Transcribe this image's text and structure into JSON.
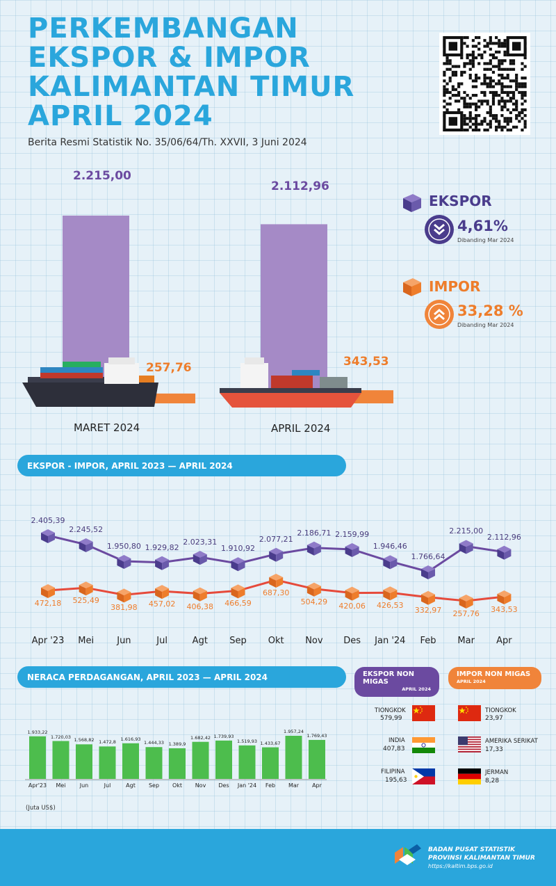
{
  "header": {
    "title_lines": [
      "PERKEMBANGAN",
      "EKSPOR & IMPOR",
      "KALIMANTAN TIMUR",
      "APRIL 2024"
    ],
    "subtitle": "Berita Resmi Statistik No. 35/06/64/Th. XXVII, 3 Juni 2024"
  },
  "comparison": {
    "periods": [
      "MARET 2024",
      "APRIL 2024"
    ],
    "ekspor_labels": [
      "2.215,00",
      "2.112,96"
    ],
    "impor_labels": [
      "257,76",
      "343,53"
    ],
    "ekspor_values": [
      2215.0,
      2112.96
    ],
    "impor_values": [
      257.76,
      343.53
    ],
    "colors": {
      "ekspor": "#a58ac6",
      "impor": "#f0843a"
    }
  },
  "changes": {
    "ekspor": {
      "title": "EKSPOR",
      "pct": "4,61%",
      "note": "Dibanding Mar 2024",
      "direction": "down",
      "color": "#4a3c8c"
    },
    "impor": {
      "title": "IMPOR",
      "pct": "33,28 %",
      "note": "Dibanding Mar 2024",
      "direction": "up",
      "color": "#f0843a"
    }
  },
  "trend_section": {
    "title": "EKSPOR - IMPOR, APRIL 2023 — APRIL 2024",
    "months": [
      "Apr '23",
      "Mei",
      "Jun",
      "Jul",
      "Agt",
      "Sep",
      "Okt",
      "Nov",
      "Des",
      "Jan '24",
      "Feb",
      "Mar",
      "Apr"
    ],
    "ekspor_labels": [
      "2.405,39",
      "2.245,52",
      "1.950,80",
      "1.929,82",
      "2.023,31",
      "1.910,92",
      "2.077,21",
      "2.186,71",
      "2.159,99",
      "1.946,46",
      "1.766,64",
      "2.215,00",
      "2.112,96"
    ],
    "impor_labels": [
      "472,18",
      "525,49",
      "381,98",
      "457,02",
      "406,38",
      "466,59",
      "687,30",
      "504,29",
      "420,06",
      "426,53",
      "332,97",
      "257,76",
      "343,53"
    ]
  },
  "balance_section": {
    "title": "NERACA PERDAGANGAN, APRIL 2023 — APRIL 2024",
    "months": [
      "Apr'23",
      "Mei",
      "Jun",
      "Jul",
      "Agt",
      "Sep",
      "Okt",
      "Nov",
      "Des",
      "Jan '24",
      "Feb",
      "Mar",
      "Apr"
    ],
    "labels": [
      "1.933,22",
      "1.720,03",
      "1.568,82",
      "1.472,8",
      "1.616,93",
      "1.444,33",
      "1.389,9",
      "1.682,42",
      "1.739,93",
      "1.519,93",
      "1.433,67",
      "1.957,24",
      "1.769,43"
    ],
    "unit": "(Juta US$)",
    "bar_color": "#4dbd4d"
  },
  "chart_data": [
    {
      "type": "bar",
      "categories": [
        "MARET 2024",
        "APRIL 2024"
      ],
      "series": [
        {
          "name": "EKSPOR",
          "values": [
            2215.0,
            2112.96
          ]
        },
        {
          "name": "IMPOR",
          "values": [
            257.76,
            343.53
          ]
        }
      ]
    },
    {
      "type": "line",
      "title": "EKSPOR - IMPOR, APRIL 2023 — APRIL 2024",
      "categories": [
        "Apr '23",
        "Mei",
        "Jun",
        "Jul",
        "Agt",
        "Sep",
        "Okt",
        "Nov",
        "Des",
        "Jan '24",
        "Feb",
        "Mar",
        "Apr"
      ],
      "series": [
        {
          "name": "EKSPOR",
          "values": [
            2405.39,
            2245.52,
            1950.8,
            1929.82,
            2023.31,
            1910.92,
            2077.21,
            2186.71,
            2159.99,
            1946.46,
            1766.64,
            2215.0,
            2112.96
          ]
        },
        {
          "name": "IMPOR",
          "values": [
            472.18,
            525.49,
            381.98,
            457.02,
            406.38,
            466.59,
            687.3,
            504.29,
            420.06,
            426.53,
            332.97,
            257.76,
            343.53
          ]
        }
      ]
    },
    {
      "type": "bar",
      "title": "NERACA PERDAGANGAN, APRIL 2023 — APRIL 2024",
      "categories": [
        "Apr'23",
        "Mei",
        "Jun",
        "Jul",
        "Agt",
        "Sep",
        "Okt",
        "Nov",
        "Des",
        "Jan '24",
        "Feb",
        "Mar",
        "Apr"
      ],
      "values": [
        1933.22,
        1720.03,
        1568.82,
        1472.8,
        1616.93,
        1444.33,
        1389.9,
        1682.42,
        1739.93,
        1519.93,
        1433.67,
        1957.24,
        1769.43
      ]
    }
  ],
  "non_migas": {
    "ekspor_title": "EKSPOR NON MIGAS",
    "impor_title": "IMPOR NON MIGAS",
    "period": "APRIL 2024",
    "ekspor": [
      {
        "country": "TIONGKOK",
        "value": "579,99",
        "flag": "china-flag"
      },
      {
        "country": "INDIA",
        "value": "407,83",
        "flag": "india-flag"
      },
      {
        "country": "FILIPINA",
        "value": "195,63",
        "flag": "philippines-flag"
      }
    ],
    "impor": [
      {
        "country": "TIONGKOK",
        "value": "23,97",
        "flag": "china-flag"
      },
      {
        "country": "AMERIKA SERIKAT",
        "value": "17,33",
        "flag": "usa-flag"
      },
      {
        "country": "JERMAN",
        "value": "8,28",
        "flag": "germany-flag"
      }
    ],
    "colors": {
      "ekspor": "#6b4aa0",
      "impor": "#f0843a"
    }
  },
  "footer": {
    "org_line1": "BADAN PUSAT STATISTIK",
    "org_line2": "PROVINSI KALIMANTAN TIMUR",
    "url": "https://kaltim.bps.go.id"
  }
}
